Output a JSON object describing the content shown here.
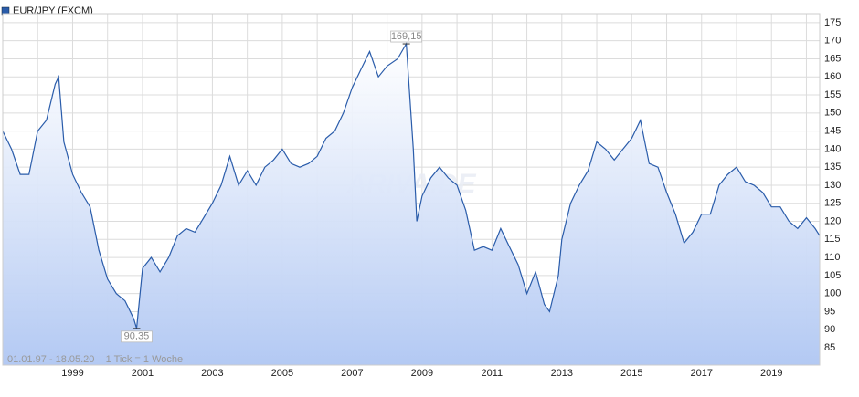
{
  "chart_data": {
    "type": "line",
    "title": "EUR/JPY (FXCM)",
    "note": "01.01.97 - 18.05.20    1 Tick = 1 Woche",
    "watermark": "ARIVA.DE",
    "color": "#2a5caa",
    "area_color": "#b3c9f3",
    "grid": true,
    "x": [
      1997.0,
      1997.25,
      1997.5,
      1997.75,
      1998.0,
      1998.25,
      1998.5,
      1998.6,
      1998.75,
      1999.0,
      1999.25,
      1999.5,
      1999.75,
      2000.0,
      2000.25,
      2000.5,
      2000.75,
      2000.83,
      2001.0,
      2001.25,
      2001.5,
      2001.75,
      2002.0,
      2002.25,
      2002.5,
      2002.75,
      2003.0,
      2003.25,
      2003.5,
      2003.75,
      2004.0,
      2004.25,
      2004.5,
      2004.75,
      2005.0,
      2005.25,
      2005.5,
      2005.75,
      2006.0,
      2006.25,
      2006.5,
      2006.75,
      2007.0,
      2007.25,
      2007.5,
      2007.75,
      2008.0,
      2008.3,
      2008.55,
      2008.75,
      2008.85,
      2009.0,
      2009.25,
      2009.5,
      2009.75,
      2010.0,
      2010.25,
      2010.5,
      2010.75,
      2011.0,
      2011.25,
      2011.5,
      2011.75,
      2012.0,
      2012.25,
      2012.5,
      2012.65,
      2012.9,
      2013.0,
      2013.25,
      2013.5,
      2013.75,
      2014.0,
      2014.25,
      2014.5,
      2014.75,
      2015.0,
      2015.25,
      2015.5,
      2015.75,
      2016.0,
      2016.25,
      2016.5,
      2016.75,
      2017.0,
      2017.25,
      2017.5,
      2017.75,
      2018.0,
      2018.25,
      2018.5,
      2018.75,
      2019.0,
      2019.25,
      2019.5,
      2019.75,
      2020.0,
      2020.25,
      2020.38
    ],
    "values": [
      145,
      140,
      133,
      133,
      145,
      148,
      158,
      160,
      142,
      133,
      128,
      124,
      112,
      104,
      100,
      98,
      93,
      90.35,
      107,
      110,
      106,
      110,
      116,
      118,
      117,
      121,
      125,
      130,
      138,
      130,
      134,
      130,
      135,
      137,
      140,
      136,
      135,
      136,
      138,
      143,
      145,
      150,
      157,
      162,
      167,
      160,
      163,
      165,
      169.15,
      140,
      120,
      127,
      132,
      135,
      132,
      130,
      123,
      112,
      113,
      112,
      118,
      113,
      108,
      100,
      106,
      97,
      95,
      105,
      115,
      125,
      130,
      134,
      142,
      140,
      137,
      140,
      143,
      148,
      136,
      135,
      128,
      122,
      114,
      117,
      122,
      122,
      130,
      133,
      135,
      131,
      130,
      128,
      124,
      124,
      120,
      118,
      121,
      118,
      116
    ],
    "annotations": [
      {
        "x": 2008.55,
        "value": 169.15,
        "label": "169,15"
      },
      {
        "x": 2000.83,
        "value": 90.35,
        "label": "90,35"
      }
    ],
    "xlim": [
      1997.0,
      2020.38
    ],
    "xticks": [
      1999,
      2001,
      2003,
      2005,
      2007,
      2009,
      2011,
      2013,
      2015,
      2017,
      2019
    ],
    "minor_xticks": [
      1998,
      2000,
      2002,
      2004,
      2006,
      2008,
      2010,
      2012,
      2014,
      2016,
      2018,
      2020
    ],
    "ylim": [
      80.2,
      177.5
    ],
    "yticks": [
      85,
      90,
      95,
      100,
      105,
      110,
      115,
      120,
      125,
      130,
      135,
      140,
      145,
      150,
      155,
      160,
      165,
      170,
      175
    ]
  }
}
